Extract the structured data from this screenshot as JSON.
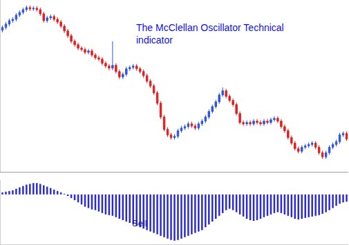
{
  "chart_data": [
    {
      "type": "candlestick",
      "annotations": [
        "The McClellan Oscillator Technical\nindicator"
      ],
      "categories": [
        null,
        null,
        null,
        null,
        null,
        null,
        null,
        null,
        null,
        null,
        null,
        null,
        null,
        null,
        null,
        null,
        null,
        null,
        null,
        null,
        null,
        null,
        null,
        null,
        null,
        null,
        null,
        null,
        null,
        null,
        null,
        null,
        null,
        null,
        null,
        null,
        null,
        null,
        null,
        null,
        null,
        null,
        null,
        null,
        null,
        null,
        null,
        null,
        null,
        null,
        null,
        null,
        null,
        null,
        null,
        null,
        null,
        null,
        null,
        null,
        null,
        null,
        null,
        null,
        null,
        null,
        null,
        null,
        null,
        null,
        null,
        null,
        null,
        null,
        null,
        null,
        null,
        null,
        null,
        null,
        null,
        null,
        null,
        null,
        null,
        null,
        null,
        null,
        null,
        null,
        null,
        null,
        null,
        null,
        null,
        null,
        null,
        null,
        null,
        null,
        null
      ],
      "open": [
        206,
        210,
        215,
        220,
        222,
        228,
        232,
        236,
        239,
        237,
        238,
        236,
        230,
        220,
        224,
        226,
        222,
        218,
        212,
        205,
        198,
        190,
        185,
        180,
        178,
        174,
        176,
        170,
        166,
        164,
        158,
        154,
        151,
        155,
        146,
        138,
        142,
        150,
        152,
        154,
        150,
        146,
        140,
        132,
        125,
        115,
        100,
        80,
        62,
        54,
        50,
        52,
        60,
        64,
        66,
        70,
        67,
        64,
        70,
        74,
        80,
        88,
        95,
        102,
        112,
        118,
        110,
        104,
        98,
        85,
        72,
        70,
        72,
        70,
        74,
        72,
        70,
        74,
        72,
        76,
        78,
        74,
        66,
        60,
        50,
        42,
        34,
        30,
        36,
        38,
        40,
        42,
        36,
        28,
        22,
        28,
        36,
        40,
        44,
        54,
        56
      ],
      "high": [
        213,
        218,
        223,
        225,
        231,
        235,
        239,
        242,
        242,
        241,
        241,
        239,
        233,
        227,
        229,
        229,
        225,
        221,
        215,
        208,
        201,
        193,
        188,
        183,
        181,
        179,
        179,
        173,
        169,
        167,
        161,
        157,
        190,
        158,
        149,
        145,
        153,
        155,
        157,
        157,
        153,
        149,
        143,
        135,
        128,
        118,
        103,
        83,
        65,
        57,
        55,
        63,
        67,
        69,
        73,
        73,
        70,
        73,
        77,
        83,
        91,
        98,
        105,
        115,
        123,
        121,
        113,
        107,
        101,
        88,
        75,
        75,
        75,
        77,
        77,
        75,
        77,
        77,
        79,
        81,
        81,
        77,
        69,
        63,
        53,
        45,
        37,
        39,
        41,
        43,
        45,
        45,
        39,
        31,
        31,
        39,
        43,
        47,
        57,
        59,
        59
      ],
      "low": [
        203,
        207,
        212,
        217,
        219,
        225,
        229,
        233,
        234,
        234,
        233,
        227,
        217,
        217,
        221,
        219,
        215,
        209,
        202,
        195,
        187,
        182,
        177,
        175,
        171,
        171,
        167,
        163,
        161,
        155,
        151,
        148,
        148,
        143,
        135,
        135,
        139,
        147,
        149,
        147,
        143,
        137,
        129,
        122,
        112,
        97,
        77,
        59,
        51,
        47,
        47,
        49,
        57,
        61,
        63,
        64,
        61,
        61,
        67,
        71,
        77,
        85,
        92,
        99,
        109,
        107,
        101,
        95,
        82,
        69,
        67,
        67,
        67,
        67,
        69,
        67,
        67,
        69,
        69,
        73,
        71,
        63,
        57,
        47,
        39,
        31,
        27,
        27,
        33,
        35,
        37,
        33,
        25,
        19,
        19,
        25,
        33,
        37,
        41,
        51,
        45
      ],
      "close": [
        210,
        215,
        220,
        222,
        228,
        232,
        236,
        239,
        237,
        238,
        236,
        230,
        220,
        224,
        226,
        222,
        218,
        212,
        205,
        198,
        190,
        185,
        180,
        178,
        174,
        176,
        170,
        166,
        164,
        158,
        154,
        151,
        155,
        146,
        138,
        142,
        150,
        152,
        154,
        150,
        146,
        140,
        132,
        125,
        115,
        100,
        80,
        62,
        54,
        50,
        52,
        60,
        64,
        66,
        70,
        67,
        64,
        70,
        74,
        80,
        88,
        95,
        102,
        112,
        118,
        110,
        104,
        98,
        85,
        72,
        70,
        72,
        70,
        74,
        72,
        70,
        74,
        72,
        76,
        78,
        74,
        66,
        60,
        50,
        42,
        34,
        30,
        36,
        38,
        40,
        42,
        36,
        28,
        22,
        28,
        36,
        40,
        44,
        54,
        56,
        48
      ],
      "ylim": [
        0,
        250
      ],
      "tick_labels": false,
      "color": {
        "up": "#2f55e0",
        "down": "#e02020"
      }
    },
    {
      "type": "bar",
      "annotations": [
        "Sell"
      ],
      "categories": [
        null,
        null,
        null,
        null,
        null,
        null,
        null,
        null,
        null,
        null,
        null,
        null,
        null,
        null,
        null,
        null,
        null,
        null,
        null,
        null,
        null,
        null,
        null,
        null,
        null,
        null,
        null,
        null,
        null,
        null,
        null,
        null,
        null,
        null,
        null,
        null,
        null,
        null,
        null,
        null,
        null,
        null,
        null,
        null,
        null,
        null,
        null,
        null,
        null,
        null,
        null,
        null,
        null,
        null,
        null,
        null,
        null,
        null,
        null,
        null,
        null,
        null,
        null,
        null,
        null,
        null,
        null,
        null,
        null,
        null,
        null,
        null,
        null,
        null,
        null,
        null,
        null,
        null,
        null,
        null,
        null,
        null,
        null,
        null,
        null,
        null,
        null,
        null,
        null,
        null,
        null,
        null,
        null,
        null,
        null,
        null,
        null,
        null,
        null,
        null,
        null
      ],
      "values": [
        3,
        4,
        5,
        6,
        8,
        10,
        12,
        14,
        15,
        16,
        16,
        15,
        13,
        11,
        9,
        7,
        5,
        3,
        1,
        -2,
        -5,
        -8,
        -11,
        -14,
        -17,
        -19,
        -21,
        -22,
        -24,
        -26,
        -28,
        -29,
        -30,
        -32,
        -34,
        -36,
        -38,
        -40,
        -42,
        -44,
        -46,
        -48,
        -50,
        -52,
        -54,
        -56,
        -58,
        -60,
        -62,
        -64,
        -65,
        -64,
        -62,
        -60,
        -58,
        -56,
        -54,
        -52,
        -50,
        -46,
        -42,
        -38,
        -34,
        -30,
        -26,
        -22,
        -20,
        -22,
        -25,
        -28,
        -31,
        -34,
        -36,
        -37,
        -36,
        -34,
        -32,
        -30,
        -28,
        -26,
        -25,
        -26,
        -28,
        -30,
        -32,
        -34,
        -35,
        -34,
        -33,
        -32,
        -31,
        -30,
        -29,
        -27,
        -25,
        -22,
        -19,
        -16,
        -13,
        -11,
        -10
      ],
      "ylim": [
        -70,
        20
      ],
      "tick_labels": false,
      "color": "#2a2ad0"
    }
  ]
}
